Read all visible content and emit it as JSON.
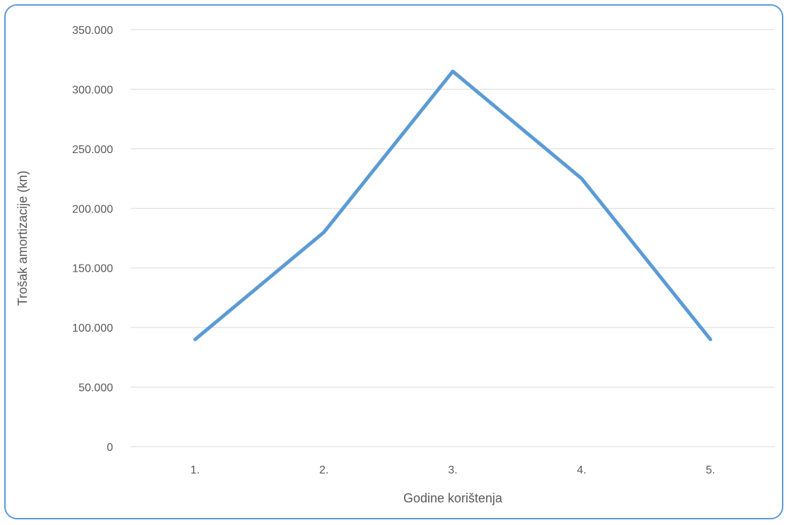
{
  "chart_data": {
    "type": "line",
    "categories": [
      "1.",
      "2.",
      "3.",
      "4.",
      "5."
    ],
    "series": [
      {
        "values": [
          90000,
          180000,
          315000,
          225000,
          90000
        ]
      }
    ],
    "xlabel": "Godine korištenja",
    "ylabel": "Trošak amortizacije (kn)",
    "ylim": [
      0,
      350000
    ],
    "yticks": [
      0,
      50000,
      100000,
      150000,
      200000,
      250000,
      300000,
      350000
    ],
    "ytick_labels": [
      "0",
      "50.000",
      "100.000",
      "150.000",
      "200.000",
      "250.000",
      "300.000",
      "350.000"
    ],
    "grid": "horizontal",
    "line_color": "#5b9bd5",
    "grid_color": "#d9d9d9",
    "frame_color": "#5b9bd5",
    "legend": "none"
  }
}
